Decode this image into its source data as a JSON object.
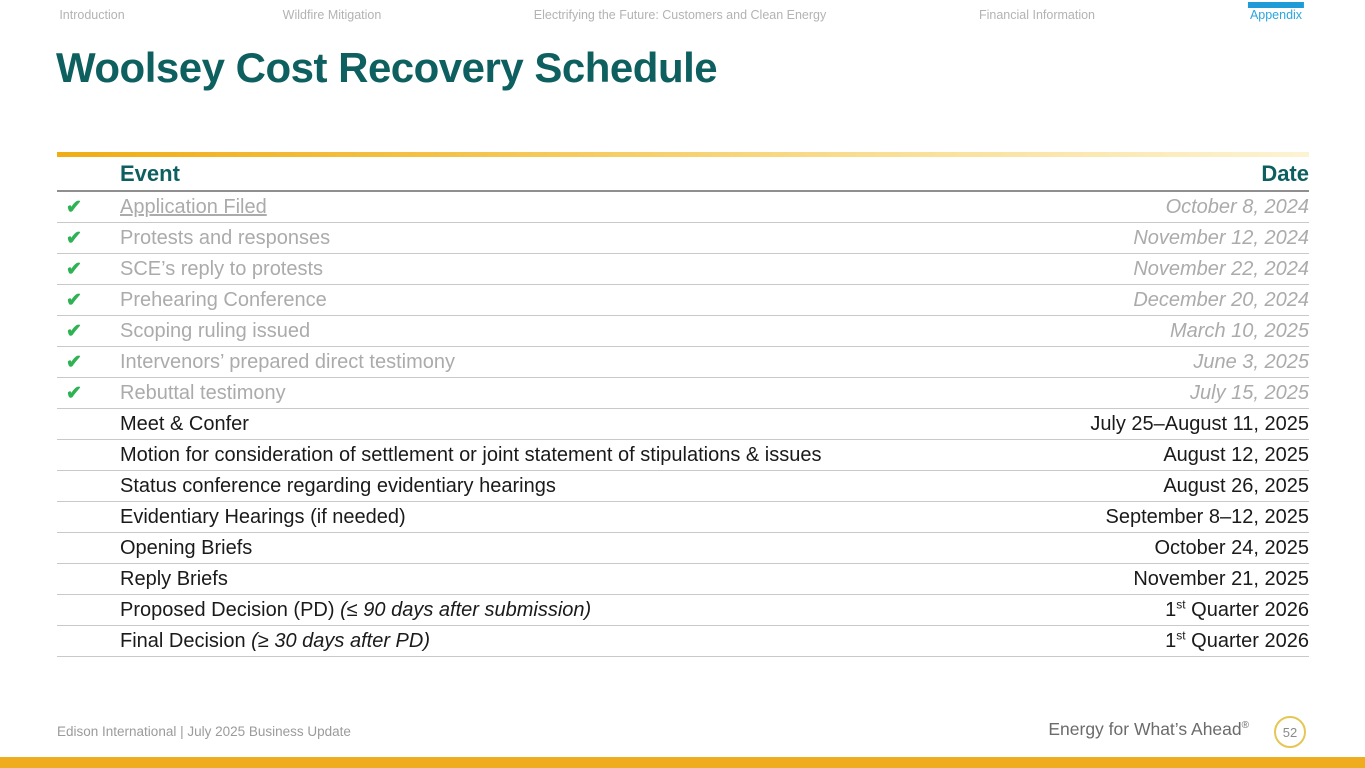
{
  "nav": {
    "items": [
      {
        "label": "Introduction",
        "active": false
      },
      {
        "label": "Wildfire Mitigation",
        "active": false
      },
      {
        "label": "Electrifying the Future: Customers and Clean Energy",
        "active": false
      },
      {
        "label": "Financial Information",
        "active": false
      },
      {
        "label": "Appendix",
        "active": true
      }
    ]
  },
  "title": "Woolsey Cost Recovery Schedule",
  "table": {
    "header": {
      "event": "Event",
      "date": "Date"
    },
    "checkmark_icon": "✔",
    "rows": [
      {
        "completed": true,
        "event": [
          {
            "t": "Application Filed",
            "underline": true
          }
        ],
        "date": [
          {
            "t": "October 8, 2024"
          }
        ]
      },
      {
        "completed": true,
        "event": [
          {
            "t": "Protests and responses"
          }
        ],
        "date": [
          {
            "t": "November 12, 2024"
          }
        ]
      },
      {
        "completed": true,
        "event": [
          {
            "t": "SCE’s reply to protests"
          }
        ],
        "date": [
          {
            "t": "November 22, 2024"
          }
        ]
      },
      {
        "completed": true,
        "event": [
          {
            "t": "Prehearing Conference"
          }
        ],
        "date": [
          {
            "t": "December 20, 2024"
          }
        ]
      },
      {
        "completed": true,
        "event": [
          {
            "t": "Scoping ruling issued"
          }
        ],
        "date": [
          {
            "t": "March 10, 2025"
          }
        ]
      },
      {
        "completed": true,
        "event": [
          {
            "t": "Intervenors’ prepared direct testimony"
          }
        ],
        "date": [
          {
            "t": "June 3, 2025"
          }
        ]
      },
      {
        "completed": true,
        "event": [
          {
            "t": "Rebuttal testimony"
          }
        ],
        "date": [
          {
            "t": "July 15, 2025"
          }
        ]
      },
      {
        "completed": false,
        "event": [
          {
            "t": "Meet & Confer"
          }
        ],
        "date": [
          {
            "t": "July 25–August 11, 2025"
          }
        ]
      },
      {
        "completed": false,
        "event": [
          {
            "t": "Motion for consideration of settlement or joint statement of stipulations & issues"
          }
        ],
        "date": [
          {
            "t": "August 12, 2025"
          }
        ]
      },
      {
        "completed": false,
        "event": [
          {
            "t": "Status conference regarding evidentiary hearings"
          }
        ],
        "date": [
          {
            "t": "August 26, 2025"
          }
        ]
      },
      {
        "completed": false,
        "event": [
          {
            "t": "Evidentiary Hearings (if needed)"
          }
        ],
        "date": [
          {
            "t": "September 8–12, 2025"
          }
        ]
      },
      {
        "completed": false,
        "event": [
          {
            "t": "Opening Briefs"
          }
        ],
        "date": [
          {
            "t": "October 24, 2025"
          }
        ]
      },
      {
        "completed": false,
        "event": [
          {
            "t": "Reply Briefs"
          }
        ],
        "date": [
          {
            "t": "November 21, 2025"
          }
        ]
      },
      {
        "completed": false,
        "event": [
          {
            "t": "Proposed Decision (PD) "
          },
          {
            "t": "(≤ 90 days after submission)",
            "italic": true
          }
        ],
        "date": [
          {
            "t": "1"
          },
          {
            "t": "st",
            "sup": true
          },
          {
            "t": " Quarter 2026"
          }
        ]
      },
      {
        "completed": false,
        "event": [
          {
            "t": "Final Decision "
          },
          {
            "t": "(≥ 30 days after PD)",
            "italic": true
          }
        ],
        "date": [
          {
            "t": "1"
          },
          {
            "t": "st",
            "sup": true
          },
          {
            "t": " Quarter 2026"
          }
        ]
      }
    ]
  },
  "footer": {
    "left_text": "Edison International | July 2025 Business Update",
    "tagline": "Energy for What’s Ahead",
    "registered_mark": "®",
    "page_number": "52"
  },
  "colors": {
    "title_teal": "#0e5f5f",
    "accent_blue": "#2ba6de",
    "check_green": "#2eb253",
    "completed_gray": "#ababab",
    "gold_bar": "#efac1e",
    "table_top_gradient_start": "#f0ad15",
    "table_top_gradient_end": "#fdf3d3",
    "circle_gold": "#e6c655"
  }
}
